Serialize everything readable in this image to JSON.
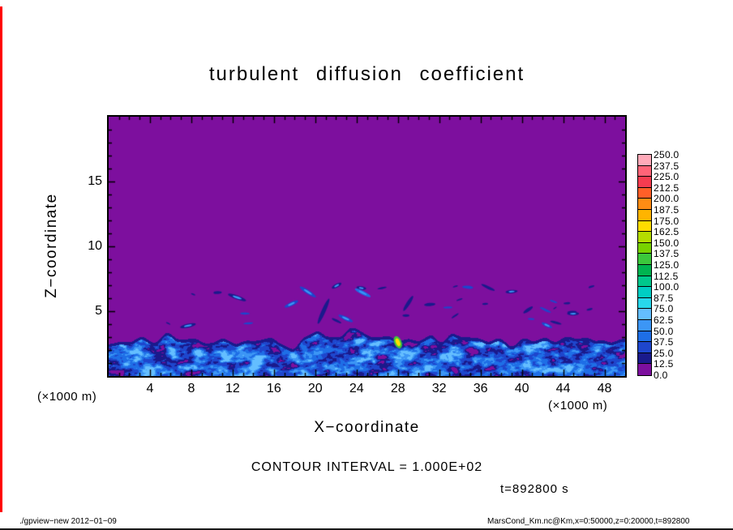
{
  "title": "turbulent diffusion coefficient",
  "axes": {
    "x_label": "X−coordinate",
    "y_label": "Z−coordinate",
    "x_unit": "(×1000 m)",
    "y_unit": "(×1000 m)",
    "x_ticks": [
      4,
      8,
      12,
      16,
      20,
      24,
      28,
      32,
      36,
      40,
      44,
      48
    ],
    "y_ticks": [
      5,
      10,
      15
    ]
  },
  "annotations": {
    "contour_interval": "CONTOUR INTERVAL = 1.000E+02",
    "time_label": "t=892800 s"
  },
  "footer": {
    "left": "./gpview−new  2012−01−09",
    "right": "MarsCond_Km.nc@Km,x=0:50000,z=0:20000,t=892800"
  },
  "colorbar": {
    "labels": [
      "250.0",
      "237.5",
      "225.0",
      "212.5",
      "200.0",
      "187.5",
      "175.0",
      "162.5",
      "150.0",
      "137.5",
      "125.0",
      "112.5",
      "100.0",
      "87.5",
      "75.0",
      "62.5",
      "50.0",
      "37.5",
      "25.0",
      "12.5",
      "0.0"
    ],
    "colors": [
      "#ffaab9",
      "#ff6478",
      "#f53c50",
      "#ff5f28",
      "#ff8c14",
      "#ffb400",
      "#ffdc00",
      "#b4dc00",
      "#78d200",
      "#3cc83c",
      "#00b450",
      "#00c88c",
      "#00cdc3",
      "#28d7eb",
      "#64beff",
      "#3c96f5",
      "#1e6ee6",
      "#1e46cd",
      "#1a1a8c",
      "#7d0f9e"
    ]
  },
  "colors": {
    "background": "#ffffff",
    "frame": "#000000",
    "text": "#000000",
    "window_edge_red": "#ff0000",
    "bottom_edge": "#1a1a1a"
  },
  "chart_data": {
    "type": "heatmap",
    "title": "turbulent diffusion coefficient",
    "xlabel": "X−coordinate (×1000 m)",
    "ylabel": "Z−coordinate (×1000 m)",
    "xlim": [
      0,
      50
    ],
    "ylim": [
      0,
      20
    ],
    "x_ticks": [
      4,
      8,
      12,
      16,
      20,
      24,
      28,
      32,
      36,
      40,
      44,
      48
    ],
    "y_ticks": [
      5,
      10,
      15
    ],
    "value_range": [
      0,
      250
    ],
    "contour_interval": 100.0,
    "levels": [
      0,
      12.5,
      25,
      37.5,
      50,
      62.5,
      75,
      87.5,
      100,
      112.5,
      125,
      137.5,
      150,
      162.5,
      175,
      187.5,
      200,
      212.5,
      225,
      237.5,
      250
    ],
    "time_s": 892800,
    "legend_position": "right-colorbar",
    "grid": false,
    "description": "Quiescent purple field (~0) above z≈4.5 km; turbulent boundary layer below z≈1.5–4.5 km with dark-blue to cyan filamentary structures (~12.5–100), small detached turbulent patches scattered between z≈4–7 km, and one localized yellow/green maximum (>150) near x≈28, z≈2.6.",
    "render": {
      "seed": 1337,
      "boundary_base": 2.8,
      "boundary_amp": 1.0,
      "boundary_amp2": 0.5,
      "blob_count": 36,
      "hotspot": {
        "x": 28.0,
        "z": 2.6
      },
      "plumes": [
        {
          "x": 20.8,
          "z": 5.0,
          "len": 34,
          "w": 2.5,
          "ang": 1.15
        },
        {
          "x": 29.0,
          "z": 5.6,
          "len": 22,
          "w": 2.2,
          "ang": 1.0
        },
        {
          "x": 40.6,
          "z": 5.1,
          "len": 14,
          "w": 2.0,
          "ang": 0.6
        }
      ]
    }
  }
}
